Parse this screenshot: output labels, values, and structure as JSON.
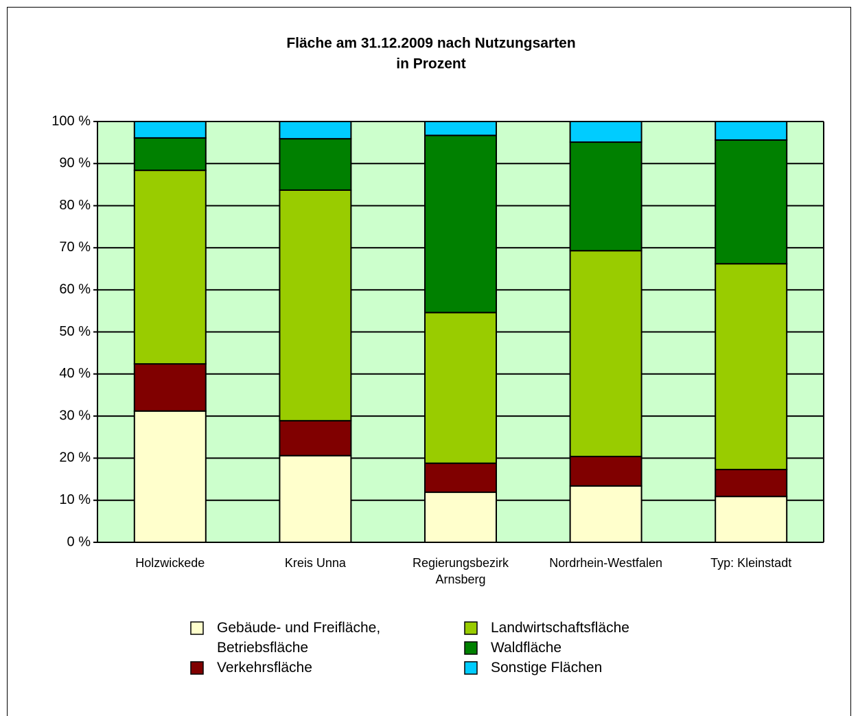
{
  "chart_data": {
    "type": "stacked_bar",
    "title": "Fläche am 31.12.2009 nach Nutzungsarten",
    "subtitle": "in Prozent",
    "categories": [
      "Holzwickede",
      "Kreis Unna",
      "Regierungsbezirk Arnsberg",
      "Nordrhein-Westfalen",
      "Typ: Kleinstadt"
    ],
    "series": [
      {
        "name": "Gebäude- und Freifläche, Betriebsfläche",
        "color": "#ffffcc",
        "values": [
          31.2,
          20.6,
          11.9,
          13.4,
          10.9
        ]
      },
      {
        "name": "Verkehrsfläche",
        "color": "#800000",
        "values": [
          11.2,
          8.3,
          6.9,
          7.0,
          6.4
        ]
      },
      {
        "name": "Landwirtschaftsfläche",
        "color": "#99cc00",
        "values": [
          46.0,
          54.8,
          35.8,
          48.9,
          48.9
        ]
      },
      {
        "name": "Waldfläche",
        "color": "#008000",
        "values": [
          7.7,
          12.2,
          42.1,
          25.8,
          29.4
        ]
      },
      {
        "name": "Sonstige Flächen",
        "color": "#00ccff",
        "values": [
          3.9,
          4.1,
          3.3,
          4.9,
          4.4
        ]
      }
    ],
    "ylim": [
      0,
      100
    ],
    "yticks": [
      {
        "value": 0,
        "label": "0 %"
      },
      {
        "value": 10,
        "label": "10 %"
      },
      {
        "value": 20,
        "label": "20 %"
      },
      {
        "value": 30,
        "label": "30 %"
      },
      {
        "value": 40,
        "label": "40 %"
      },
      {
        "value": 50,
        "label": "50 %"
      },
      {
        "value": 60,
        "label": "60 %"
      },
      {
        "value": 70,
        "label": "70 %"
      },
      {
        "value": 80,
        "label": "80 %"
      },
      {
        "value": 90,
        "label": "90 %"
      },
      {
        "value": 100,
        "label": "100 %"
      }
    ],
    "grid": true,
    "plot_background": "#ccffcc"
  }
}
